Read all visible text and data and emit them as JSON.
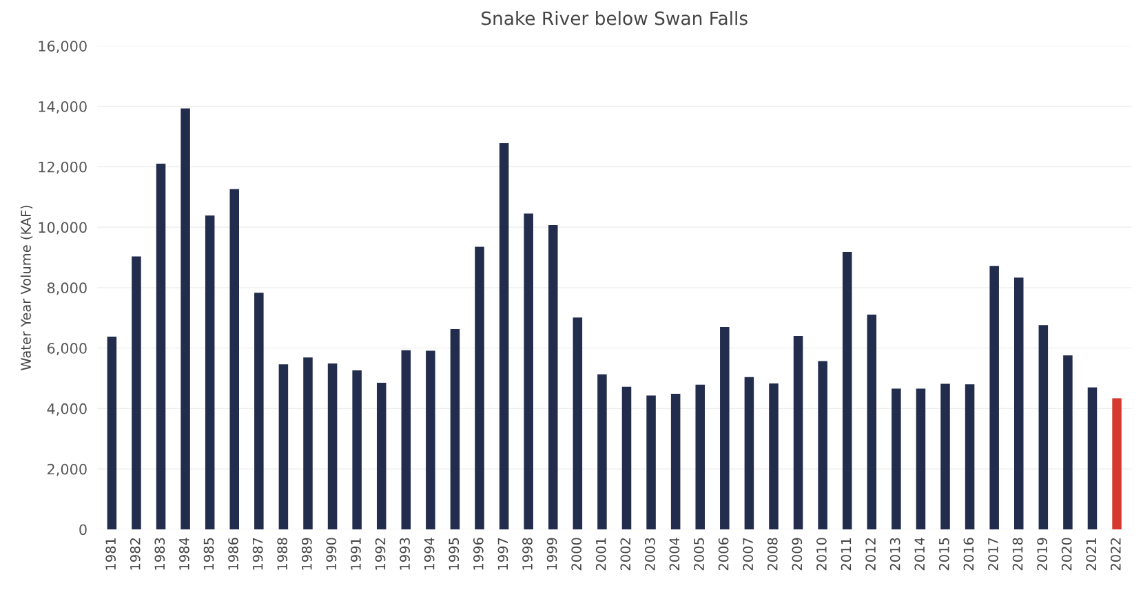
{
  "chart_data": {
    "type": "bar",
    "title": "Snake River below Swan Falls",
    "ylabel": "Water Year Volume (KAF)",
    "categories": [
      "1981",
      "1982",
      "1983",
      "1984",
      "1985",
      "1986",
      "1987",
      "1988",
      "1989",
      "1990",
      "1991",
      "1992",
      "1993",
      "1994",
      "1995",
      "1996",
      "1997",
      "1998",
      "1999",
      "2000",
      "2001",
      "2002",
      "2003",
      "2004",
      "2005",
      "2006",
      "2007",
      "2008",
      "2009",
      "2010",
      "2011",
      "2012",
      "2013",
      "2014",
      "2015",
      "2016",
      "2017",
      "2018",
      "2019",
      "2020",
      "2021",
      "2022"
    ],
    "values": [
      6380,
      9030,
      12100,
      13930,
      10390,
      11260,
      7830,
      5460,
      5690,
      5490,
      5260,
      4850,
      5930,
      5910,
      6630,
      9350,
      12780,
      10450,
      10070,
      7010,
      5130,
      4720,
      4430,
      4490,
      4790,
      6700,
      5040,
      4830,
      6400,
      5570,
      9180,
      7110,
      4660,
      4660,
      4820,
      4800,
      8720,
      8330,
      6760,
      5760,
      4700,
      4340
    ],
    "colors": [
      "#222c4c",
      "#222c4c",
      "#222c4c",
      "#222c4c",
      "#222c4c",
      "#222c4c",
      "#222c4c",
      "#222c4c",
      "#222c4c",
      "#222c4c",
      "#222c4c",
      "#222c4c",
      "#222c4c",
      "#222c4c",
      "#222c4c",
      "#222c4c",
      "#222c4c",
      "#222c4c",
      "#222c4c",
      "#222c4c",
      "#222c4c",
      "#222c4c",
      "#222c4c",
      "#222c4c",
      "#222c4c",
      "#222c4c",
      "#222c4c",
      "#222c4c",
      "#222c4c",
      "#222c4c",
      "#222c4c",
      "#222c4c",
      "#222c4c",
      "#222c4c",
      "#222c4c",
      "#222c4c",
      "#222c4c",
      "#222c4c",
      "#222c4c",
      "#222c4c",
      "#222c4c",
      "#d63a2f"
    ],
    "ylim": [
      0,
      16000
    ],
    "yticks": [
      {
        "value": 0,
        "label": "0"
      },
      {
        "value": 2000,
        "label": "2,000"
      },
      {
        "value": 4000,
        "label": "4,000"
      },
      {
        "value": 6000,
        "label": "6,000"
      },
      {
        "value": 8000,
        "label": "8,000"
      },
      {
        "value": 10000,
        "label": "10,000"
      },
      {
        "value": 12000,
        "label": "12,000"
      },
      {
        "value": 14000,
        "label": "14,000"
      },
      {
        "value": 16000,
        "label": "16,000"
      }
    ],
    "grid": "y"
  }
}
